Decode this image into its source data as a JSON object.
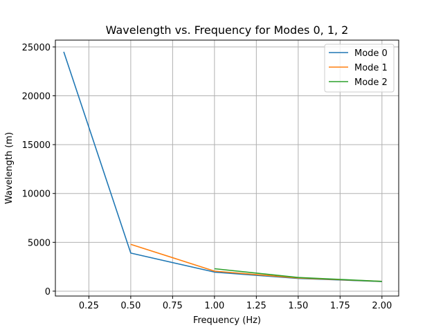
{
  "chart_data": {
    "type": "line",
    "title": "Wavelength vs. Frequency for Modes 0, 1, 2",
    "xlabel": "Frequency (Hz)",
    "ylabel": "Wavelength (m)",
    "xlim": [
      0.05,
      2.1
    ],
    "ylim": [
      -500,
      25700
    ],
    "xticks": [
      0.25,
      0.5,
      0.75,
      1.0,
      1.25,
      1.5,
      1.75,
      2.0
    ],
    "xtick_labels": [
      "0.25",
      "0.50",
      "0.75",
      "1.00",
      "1.25",
      "1.50",
      "1.75",
      "2.00"
    ],
    "yticks": [
      0,
      5000,
      10000,
      15000,
      20000,
      25000
    ],
    "ytick_labels": [
      "0",
      "5000",
      "10000",
      "15000",
      "20000",
      "25000"
    ],
    "grid": true,
    "legend_position": "top-right",
    "series": [
      {
        "name": "Mode 0",
        "color": "#1f77b4",
        "x": [
          0.1,
          0.5,
          1.0,
          1.5,
          2.0
        ],
        "y": [
          24500,
          3900,
          1950,
          1300,
          980
        ]
      },
      {
        "name": "Mode 1",
        "color": "#ff7f0e",
        "x": [
          0.5,
          1.0,
          1.5,
          2.0
        ],
        "y": [
          4800,
          2050,
          1350,
          1000
        ]
      },
      {
        "name": "Mode 2",
        "color": "#2ca02c",
        "x": [
          1.0,
          1.5,
          2.0
        ],
        "y": [
          2300,
          1400,
          1000
        ]
      }
    ]
  }
}
